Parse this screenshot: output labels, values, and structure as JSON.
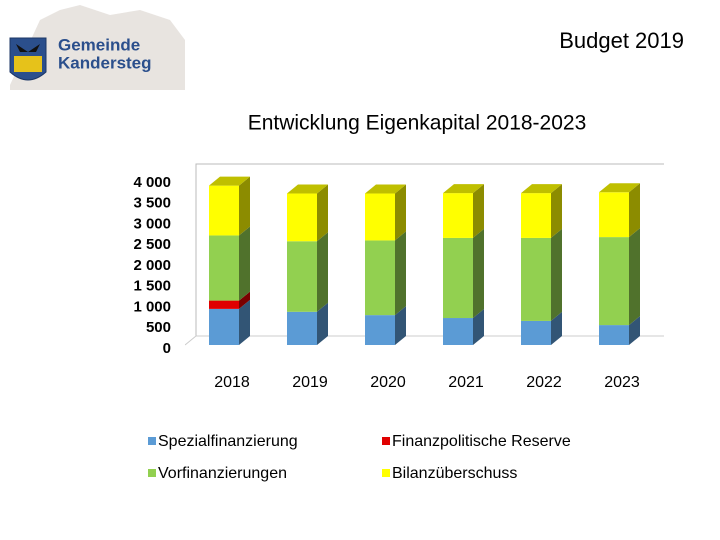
{
  "logo": {
    "line1": "Gemeinde",
    "line2": "Kandersteg"
  },
  "chart_data": {
    "type": "bar",
    "stacked": true,
    "header": "Budget 2019",
    "title": "Entwicklung Eigenkapital 2018-2023",
    "categories": [
      "2018",
      "2019",
      "2020",
      "2021",
      "2022",
      "2023"
    ],
    "series": [
      {
        "name": "Spezialfinanzierung",
        "color": "#5b9bd5",
        "values": [
          870,
          800,
          720,
          650,
          580,
          480
        ]
      },
      {
        "name": "Finanzpolitische Reserve",
        "color": "#e00000",
        "values": [
          200,
          0,
          0,
          0,
          0,
          0
        ]
      },
      {
        "name": "Vorfinanzierungen",
        "color": "#92d050",
        "values": [
          1570,
          1700,
          1800,
          1930,
          2000,
          2120
        ]
      },
      {
        "name": "Bilanzüberschuss",
        "color": "#ffff00",
        "values": [
          1200,
          1150,
          1130,
          1080,
          1080,
          1080
        ]
      }
    ],
    "ylim": [
      0,
      4000
    ],
    "yticks": [
      0,
      500,
      {
        "value": 1000,
        "label": "1 000"
      },
      {
        "value": 1500,
        "label": "1 500"
      },
      {
        "value": 2000,
        "label": "2 000"
      },
      {
        "value": 2500,
        "label": "2 500"
      },
      {
        "value": 3000,
        "label": "3 000"
      },
      {
        "value": 3500,
        "label": "3 500"
      },
      {
        "value": 4000,
        "label": "4 000"
      }
    ]
  }
}
